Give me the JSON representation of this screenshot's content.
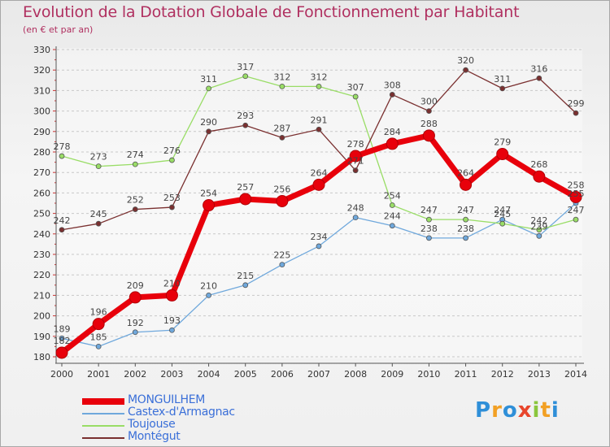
{
  "title": "Evolution de la Dotation Globale de Fonctionnement par Habitant",
  "subtitle": "(en € et par an)",
  "logo_text": "Proxiti",
  "colors": {
    "title": "#b03060",
    "legend_text": "#3a6fd8",
    "grid": "#c8c8c8",
    "axis": "#555555"
  },
  "chart_data": {
    "type": "line",
    "x": [
      "2000",
      "2001",
      "2002",
      "2003",
      "2004",
      "2005",
      "2006",
      "2007",
      "2008",
      "2009",
      "2010",
      "2011",
      "2012",
      "2013",
      "2014"
    ],
    "ylim": [
      180,
      330
    ],
    "yticks": [
      180,
      190,
      200,
      210,
      220,
      230,
      240,
      250,
      260,
      270,
      280,
      290,
      300,
      310,
      320,
      330
    ],
    "grid": "horizontal dashed",
    "legend_position": "bottom-left",
    "series": [
      {
        "name": "MONGUILHEM",
        "color": "#e8000b",
        "emphasis": true,
        "values": [
          182,
          196,
          209,
          210,
          254,
          257,
          256,
          264,
          278,
          284,
          288,
          264,
          279,
          268,
          258
        ]
      },
      {
        "name": "Castex-d'Armagnac",
        "color": "#6fa8dc",
        "values": [
          189,
          185,
          192,
          193,
          210,
          215,
          225,
          234,
          248,
          244,
          238,
          238,
          247,
          239,
          255
        ]
      },
      {
        "name": "Toujouse",
        "color": "#99dd66",
        "values": [
          278,
          273,
          274,
          276,
          311,
          317,
          312,
          312,
          307,
          254,
          247,
          247,
          245,
          242,
          247
        ]
      },
      {
        "name": "Montégut",
        "color": "#7a3030",
        "values": [
          242,
          245,
          252,
          253,
          290,
          293,
          287,
          291,
          271,
          308,
          300,
          320,
          311,
          316,
          299
        ]
      }
    ]
  }
}
